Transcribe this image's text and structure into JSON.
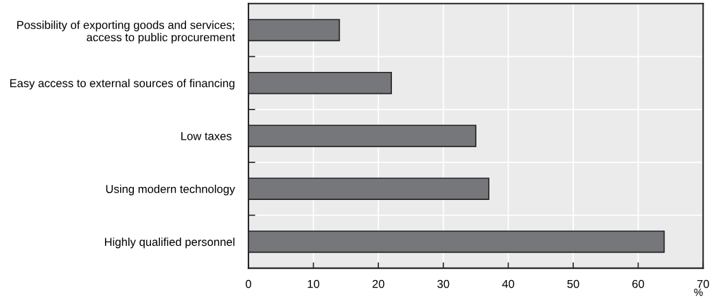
{
  "chart_data": {
    "type": "bar",
    "orientation": "horizontal",
    "categories": [
      "Possibility of exporting goods and services;\naccess to public procurement",
      "Easy access to external sources of financing",
      "Low taxes ",
      "Using modern technology",
      "Highly qualified personnel"
    ],
    "values": [
      14,
      22,
      35,
      37,
      64
    ],
    "color": "#76777b",
    "xlim": [
      0,
      70
    ],
    "xticks": [
      0,
      10,
      20,
      30,
      40,
      50,
      60,
      70
    ],
    "xlabel": "%",
    "grid": true
  }
}
